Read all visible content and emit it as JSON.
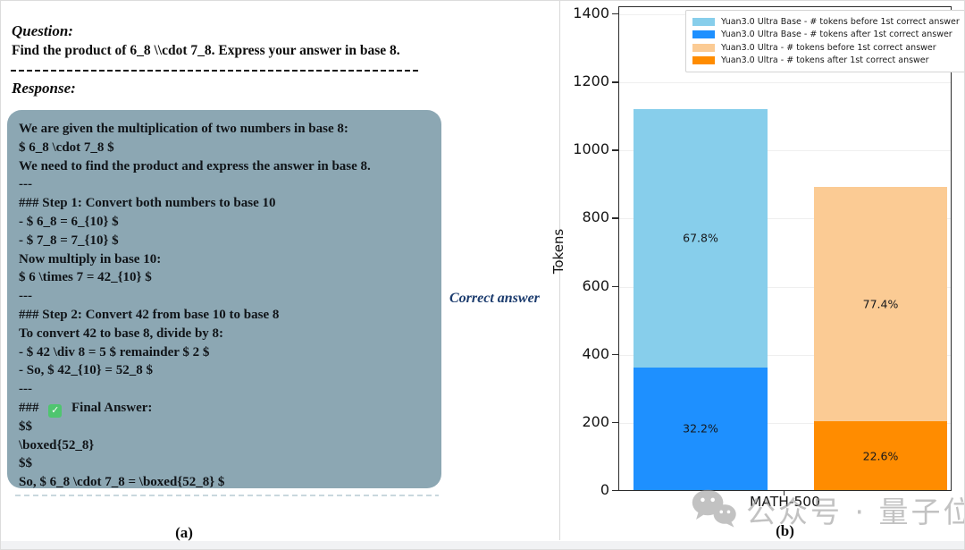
{
  "panel_a": {
    "question_label": "Question:",
    "question_text": "Find the product of 6_8 \\\\cdot 7_8. Express your answer in base 8.",
    "response_label": "Response:",
    "response_box_color": "#8CA7B3",
    "response_lines": [
      "We are given the multiplication of two numbers in base 8:",
      "$ 6_8 \\cdot 7_8 $",
      "We need to find the product and express the answer in base 8.",
      "---",
      "### Step 1: Convert both numbers to base 10",
      "- $ 6_8 = 6_{10} $",
      "- $ 7_8 = 7_{10} $",
      "Now multiply in base 10:",
      "$ 6 \\times 7 = 42_{10} $",
      "---",
      "### Step 2: Convert 42 from base 10 to base 8",
      "To convert 42 to base 8, divide by 8:",
      "- $ 42 \\div 8 = 5 $ remainder $ 2 $",
      "- So, $ 42_{10} = 52_8 $",
      "---",
      "### ✅ Final Answer:",
      "$$",
      "\\boxed{52_8}",
      "$$",
      "So, $ 6_8 \\cdot 7_8 = \\boxed{52_8} $"
    ],
    "check_icon": "✓",
    "annotation": "Correct answer",
    "annotation_color": "#1C3C6E",
    "caption": "(a)"
  },
  "panel_b": {
    "caption": "(b)",
    "watermark_text": "公众号 · 量子位",
    "watermark_icon": "wechat-icon"
  },
  "chart_data": {
    "type": "bar",
    "stacked": true,
    "title": "",
    "xlabel": "",
    "ylabel": "Tokens",
    "categories": [
      "MATH-500"
    ],
    "ylim": [
      0,
      1400
    ],
    "yticks": [
      0,
      200,
      400,
      600,
      800,
      1000,
      1200,
      1400
    ],
    "grid": true,
    "legend_position": "upper right",
    "legend": [
      {
        "label": "Yuan3.0 Ultra Base - # tokens before 1st correct answer",
        "color": "#87CEEB"
      },
      {
        "label": "Yuan3.0 Ultra Base - # tokens after 1st correct answer",
        "color": "#1E90FF"
      },
      {
        "label": "Yuan3.0 Ultra - # tokens before 1st correct answer",
        "color": "#FBCB94"
      },
      {
        "label": "Yuan3.0 Ultra - # tokens after 1st correct answer",
        "color": "#FF8C00"
      }
    ],
    "bars": [
      {
        "category": "MATH-500",
        "model": "Yuan3.0 Ultra Base",
        "total_tokens": 1120,
        "segments": [
          {
            "label": "# tokens after 1st correct answer",
            "value": 361,
            "pct": "32.2%",
            "color": "#1E90FF"
          },
          {
            "label": "# tokens before 1st correct answer",
            "value": 759,
            "pct": "67.8%",
            "color": "#87CEEB"
          }
        ]
      },
      {
        "category": "MATH-500",
        "model": "Yuan3.0 Ultra",
        "total_tokens": 890,
        "segments": [
          {
            "label": "# tokens after 1st correct answer",
            "value": 201,
            "pct": "22.6%",
            "color": "#FF8C00"
          },
          {
            "label": "# tokens before 1st correct answer",
            "value": 689,
            "pct": "77.4%",
            "color": "#FBCB94"
          }
        ]
      }
    ]
  }
}
